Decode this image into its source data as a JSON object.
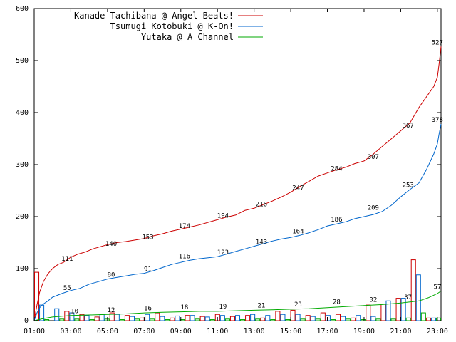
{
  "chart_data": {
    "type": "line",
    "title": "",
    "xlabel": "",
    "ylabel": "",
    "xlim": [
      1,
      23.2
    ],
    "ylim": [
      0,
      600
    ],
    "grid": false,
    "legend_position": "top-left",
    "x_ticks": [
      "01:00",
      "03:00",
      "05:00",
      "07:00",
      "09:00",
      "11:00",
      "13:00",
      "15:00",
      "17:00",
      "19:00",
      "21:00",
      "23:00"
    ],
    "y_ticks": [
      "0",
      "100",
      "200",
      "300",
      "400",
      "500",
      "600"
    ],
    "series": [
      {
        "name": "Kanade Tachibana @ Angel Beats!",
        "color": "#cc0000",
        "x": [
          1.0,
          1.15,
          1.3,
          1.5,
          1.75,
          2.0,
          2.3,
          2.6,
          3.0,
          3.4,
          3.8,
          4.2,
          4.6,
          5.0,
          5.5,
          6.0,
          6.5,
          7.0,
          7.5,
          8.0,
          8.5,
          9.0,
          9.5,
          10.0,
          10.5,
          11.0,
          11.5,
          12.0,
          12.5,
          13.0,
          13.5,
          14.0,
          14.5,
          15.0,
          15.5,
          16.0,
          16.5,
          17.0,
          17.5,
          18.0,
          18.5,
          19.0,
          19.5,
          20.0,
          20.5,
          21.0,
          21.5,
          22.0,
          22.4,
          22.8,
          23.0,
          23.1,
          23.2
        ],
        "y": [
          0,
          30,
          55,
          75,
          90,
          100,
          108,
          112,
          122,
          128,
          132,
          138,
          142,
          146,
          150,
          152,
          155,
          158,
          163,
          167,
          172,
          176,
          180,
          184,
          189,
          194,
          199,
          203,
          212,
          216,
          223,
          230,
          238,
          247,
          258,
          268,
          278,
          284,
          290,
          295,
          302,
          307,
          320,
          335,
          350,
          365,
          380,
          410,
          430,
          450,
          468,
          495,
          527
        ]
      },
      {
        "name": "Tsumugi Kotobuki @ K-On!",
        "color": "#0066cc",
        "x": [
          1.0,
          1.15,
          1.3,
          1.5,
          1.75,
          2.0,
          2.5,
          3.0,
          3.5,
          4.0,
          4.5,
          5.0,
          5.5,
          6.0,
          6.5,
          7.0,
          7.5,
          8.0,
          8.5,
          9.0,
          9.5,
          10.0,
          10.5,
          11.0,
          11.5,
          12.0,
          12.5,
          13.0,
          13.5,
          14.0,
          14.5,
          15.0,
          15.5,
          16.0,
          16.5,
          17.0,
          17.5,
          18.0,
          18.5,
          19.0,
          19.5,
          20.0,
          20.5,
          21.0,
          21.5,
          22.0,
          22.4,
          22.8,
          23.0,
          23.1,
          23.2
        ],
        "y": [
          0,
          15,
          25,
          32,
          38,
          45,
          52,
          58,
          62,
          70,
          75,
          80,
          83,
          86,
          89,
          91,
          96,
          102,
          108,
          112,
          116,
          119,
          121,
          123,
          128,
          133,
          138,
          143,
          148,
          153,
          157,
          160,
          164,
          169,
          175,
          182,
          186,
          190,
          196,
          200,
          204,
          210,
          222,
          238,
          252,
          265,
          290,
          320,
          340,
          360,
          378
        ]
      },
      {
        "name": "Yutaka @ A Channel",
        "color": "#00aa00",
        "x": [
          1.0,
          1.5,
          2.0,
          3.0,
          4.0,
          5.0,
          6.0,
          7.0,
          8.0,
          9.0,
          10.0,
          11.0,
          12.0,
          13.0,
          14.0,
          15.0,
          16.0,
          17.0,
          18.0,
          19.0,
          20.0,
          21.0,
          22.0,
          22.5,
          23.0,
          23.2
        ],
        "y": [
          0,
          4,
          7,
          10,
          11,
          12,
          13,
          15,
          16,
          17,
          18,
          18,
          19,
          20,
          21,
          22,
          23,
          25,
          27,
          29,
          31,
          34,
          38,
          44,
          52,
          57
        ]
      }
    ],
    "bars": [
      {
        "name": "Kanade Tachibana @ Angel Beats!",
        "values": [
          93,
          0,
          18,
          12,
          7,
          15,
          10,
          5,
          15,
          5,
          10,
          8,
          12,
          8,
          10,
          5,
          18,
          20,
          10,
          15,
          12,
          5,
          30,
          32,
          43,
          117,
          5
        ]
      },
      {
        "name": "Tsumugi Kotobuki @ K-On!",
        "values": [
          30,
          23,
          15,
          10,
          12,
          12,
          8,
          12,
          8,
          9,
          10,
          7,
          10,
          10,
          12,
          10,
          12,
          12,
          8,
          10,
          8,
          10,
          8,
          38,
          43,
          88,
          5
        ]
      },
      {
        "name": "Yutaka @ A Channel",
        "values": [
          2,
          3,
          3,
          2,
          3,
          2,
          3,
          3,
          2,
          2,
          3,
          2,
          3,
          2,
          3,
          2,
          2,
          3,
          3,
          2,
          3,
          2,
          3,
          3,
          5,
          15,
          5
        ]
      }
    ],
    "annotations": [
      {
        "series": 0,
        "x": 2.8,
        "y": 111,
        "text": "111"
      },
      {
        "series": 0,
        "x": 5.2,
        "y": 140,
        "text": "140"
      },
      {
        "series": 0,
        "x": 7.2,
        "y": 153,
        "text": "153"
      },
      {
        "series": 0,
        "x": 9.2,
        "y": 174,
        "text": "174"
      },
      {
        "series": 0,
        "x": 11.3,
        "y": 194,
        "text": "194"
      },
      {
        "series": 0,
        "x": 13.4,
        "y": 216,
        "text": "216"
      },
      {
        "series": 0,
        "x": 15.4,
        "y": 247,
        "text": "247"
      },
      {
        "series": 0,
        "x": 17.5,
        "y": 284,
        "text": "284"
      },
      {
        "series": 0,
        "x": 19.5,
        "y": 307,
        "text": "307"
      },
      {
        "series": 0,
        "x": 21.4,
        "y": 367,
        "text": "367"
      },
      {
        "series": 0,
        "x": 23.0,
        "y": 527,
        "text": "527"
      },
      {
        "series": 1,
        "x": 2.8,
        "y": 55,
        "text": "55"
      },
      {
        "series": 1,
        "x": 5.2,
        "y": 80,
        "text": "80"
      },
      {
        "series": 1,
        "x": 7.2,
        "y": 91,
        "text": "91"
      },
      {
        "series": 1,
        "x": 9.2,
        "y": 116,
        "text": "116"
      },
      {
        "series": 1,
        "x": 11.3,
        "y": 123,
        "text": "123"
      },
      {
        "series": 1,
        "x": 13.4,
        "y": 143,
        "text": "143"
      },
      {
        "series": 1,
        "x": 15.4,
        "y": 164,
        "text": "164"
      },
      {
        "series": 1,
        "x": 17.5,
        "y": 186,
        "text": "186"
      },
      {
        "series": 1,
        "x": 19.5,
        "y": 209,
        "text": "209"
      },
      {
        "series": 1,
        "x": 21.4,
        "y": 253,
        "text": "253"
      },
      {
        "series": 1,
        "x": 23.0,
        "y": 378,
        "text": "378"
      },
      {
        "series": 2,
        "x": 3.2,
        "y": 10,
        "text": "10"
      },
      {
        "series": 2,
        "x": 5.2,
        "y": 12,
        "text": "12"
      },
      {
        "series": 2,
        "x": 7.2,
        "y": 16,
        "text": "16"
      },
      {
        "series": 2,
        "x": 9.2,
        "y": 18,
        "text": "18"
      },
      {
        "series": 2,
        "x": 11.3,
        "y": 19,
        "text": "19"
      },
      {
        "series": 2,
        "x": 13.4,
        "y": 21,
        "text": "21"
      },
      {
        "series": 2,
        "x": 15.4,
        "y": 23,
        "text": "23"
      },
      {
        "series": 2,
        "x": 17.5,
        "y": 28,
        "text": "28"
      },
      {
        "series": 2,
        "x": 19.5,
        "y": 32,
        "text": "32"
      },
      {
        "series": 2,
        "x": 21.4,
        "y": 37,
        "text": "37"
      },
      {
        "series": 2,
        "x": 23.0,
        "y": 57,
        "text": "57"
      }
    ]
  }
}
